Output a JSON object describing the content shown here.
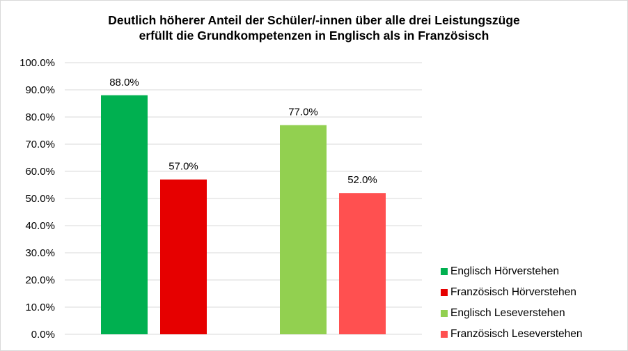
{
  "chart_data": {
    "type": "bar",
    "title_lines": [
      "Deutlich höherer Anteil der Schüler/-innen über alle drei Leistungszüge",
      "erfüllt die Grundkompetenzen in Englisch als in Französisch"
    ],
    "y_tick_labels": [
      "0.0%",
      "10.0%",
      "20.0%",
      "30.0%",
      "40.0%",
      "50.0%",
      "60.0%",
      "70.0%",
      "80.0%",
      "90.0%",
      "100.0%"
    ],
    "ylim": [
      0,
      100
    ],
    "grid": true,
    "legend_position": "bottom-right",
    "series": [
      {
        "name": "Englisch Hörverstehen",
        "value": 88.0,
        "label": "88.0%",
        "color": "#00b050"
      },
      {
        "name": "Französisch Hörverstehen",
        "value": 57.0,
        "label": "57.0%",
        "color": "#e60000"
      },
      {
        "name": "Englisch Leseverstehen",
        "value": 77.0,
        "label": "77.0%",
        "color": "#92d050"
      },
      {
        "name": "Französisch Leseverstehen",
        "value": 52.0,
        "label": "52.0%",
        "color": "#ff5050"
      }
    ]
  }
}
